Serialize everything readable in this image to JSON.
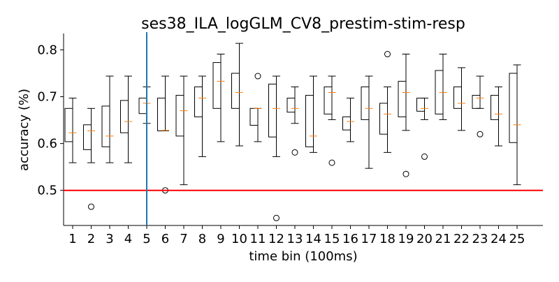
{
  "chart_data": {
    "type": "box",
    "title": "ses38_ILA_logGLM_CV8_prestim-stim-resp",
    "xlabel": "time bin (100ms)",
    "ylabel": "accuracy (%)",
    "categories": [
      "1",
      "2",
      "3",
      "4",
      "5",
      "6",
      "7",
      "8",
      "9",
      "10",
      "11",
      "12",
      "13",
      "14",
      "15",
      "16",
      "17",
      "18",
      "19",
      "20",
      "21",
      "22",
      "23",
      "24",
      "25"
    ],
    "ylim": [
      0.425,
      0.835
    ],
    "yticks": [
      "0.5",
      "0.6",
      "0.7",
      "0.8"
    ],
    "ytick_values": [
      0.5,
      0.6,
      0.7,
      0.8
    ],
    "grid": false,
    "reference_line": {
      "y": 0.5,
      "color": "#ff0000"
    },
    "vertical_marker": {
      "x": 5,
      "color": "#1f77b4"
    },
    "colors": {
      "box": "#000000",
      "median": "#ff7f0e"
    },
    "boxes": [
      {
        "x": 1,
        "whislo": 0.559,
        "q1": 0.604,
        "med": 0.623,
        "q3": 0.675,
        "whishi": 0.697,
        "fliers": []
      },
      {
        "x": 2,
        "whislo": 0.559,
        "q1": 0.587,
        "med": 0.627,
        "q3": 0.64,
        "whishi": 0.675,
        "fliers": [
          0.465
        ]
      },
      {
        "x": 3,
        "whislo": 0.559,
        "q1": 0.593,
        "med": 0.616,
        "q3": 0.68,
        "whishi": 0.744,
        "fliers": []
      },
      {
        "x": 4,
        "whislo": 0.559,
        "q1": 0.623,
        "med": 0.647,
        "q3": 0.692,
        "whishi": 0.744,
        "fliers": []
      },
      {
        "x": 5,
        "whislo": 0.643,
        "q1": 0.664,
        "med": 0.686,
        "q3": 0.697,
        "whishi": 0.721,
        "fliers": []
      },
      {
        "x": 6,
        "whislo": 0.627,
        "q1": 0.627,
        "med": 0.628,
        "q3": 0.697,
        "whishi": 0.744,
        "fliers": [
          0.5
        ]
      },
      {
        "x": 7,
        "whislo": 0.512,
        "q1": 0.616,
        "med": 0.67,
        "q3": 0.703,
        "whishi": 0.744,
        "fliers": []
      },
      {
        "x": 8,
        "whislo": 0.572,
        "q1": 0.657,
        "med": 0.697,
        "q3": 0.721,
        "whishi": 0.744,
        "fliers": []
      },
      {
        "x": 9,
        "whislo": 0.604,
        "q1": 0.675,
        "med": 0.733,
        "q3": 0.773,
        "whishi": 0.791,
        "fliers": []
      },
      {
        "x": 10,
        "whislo": 0.595,
        "q1": 0.675,
        "med": 0.709,
        "q3": 0.75,
        "whishi": 0.814,
        "fliers": []
      },
      {
        "x": 11,
        "whislo": 0.604,
        "q1": 0.639,
        "med": 0.675,
        "q3": 0.675,
        "whishi": 0.675,
        "fliers": [
          0.744
        ]
      },
      {
        "x": 12,
        "whislo": 0.572,
        "q1": 0.614,
        "med": 0.675,
        "q3": 0.727,
        "whishi": 0.744,
        "fliers": [
          0.441
        ]
      },
      {
        "x": 13,
        "whislo": 0.643,
        "q1": 0.667,
        "med": 0.675,
        "q3": 0.697,
        "whishi": 0.721,
        "fliers": [
          0.581
        ]
      },
      {
        "x": 14,
        "whislo": 0.581,
        "q1": 0.593,
        "med": 0.616,
        "q3": 0.703,
        "whishi": 0.744,
        "fliers": []
      },
      {
        "x": 15,
        "whislo": 0.651,
        "q1": 0.663,
        "med": 0.709,
        "q3": 0.721,
        "whishi": 0.744,
        "fliers": [
          0.559
        ]
      },
      {
        "x": 16,
        "whislo": 0.604,
        "q1": 0.629,
        "med": 0.647,
        "q3": 0.657,
        "whishi": 0.697,
        "fliers": []
      },
      {
        "x": 17,
        "whislo": 0.547,
        "q1": 0.651,
        "med": 0.675,
        "q3": 0.721,
        "whishi": 0.744,
        "fliers": []
      },
      {
        "x": 18,
        "whislo": 0.581,
        "q1": 0.62,
        "med": 0.663,
        "q3": 0.686,
        "whishi": 0.721,
        "fliers": [
          0.791
        ]
      },
      {
        "x": 19,
        "whislo": 0.628,
        "q1": 0.657,
        "med": 0.709,
        "q3": 0.733,
        "whishi": 0.791,
        "fliers": [
          0.535
        ]
      },
      {
        "x": 20,
        "whislo": 0.651,
        "q1": 0.669,
        "med": 0.675,
        "q3": 0.697,
        "whishi": 0.697,
        "fliers": [
          0.572
        ]
      },
      {
        "x": 21,
        "whislo": 0.651,
        "q1": 0.663,
        "med": 0.709,
        "q3": 0.756,
        "whishi": 0.791,
        "fliers": []
      },
      {
        "x": 22,
        "whislo": 0.628,
        "q1": 0.675,
        "med": 0.686,
        "q3": 0.721,
        "whishi": 0.762,
        "fliers": []
      },
      {
        "x": 23,
        "whislo": 0.675,
        "q1": 0.675,
        "med": 0.697,
        "q3": 0.703,
        "whishi": 0.744,
        "fliers": [
          0.62
        ]
      },
      {
        "x": 24,
        "whislo": 0.595,
        "q1": 0.651,
        "med": 0.663,
        "q3": 0.703,
        "whishi": 0.721,
        "fliers": []
      },
      {
        "x": 25,
        "whislo": 0.512,
        "q1": 0.602,
        "med": 0.64,
        "q3": 0.75,
        "whishi": 0.768,
        "fliers": []
      }
    ]
  }
}
